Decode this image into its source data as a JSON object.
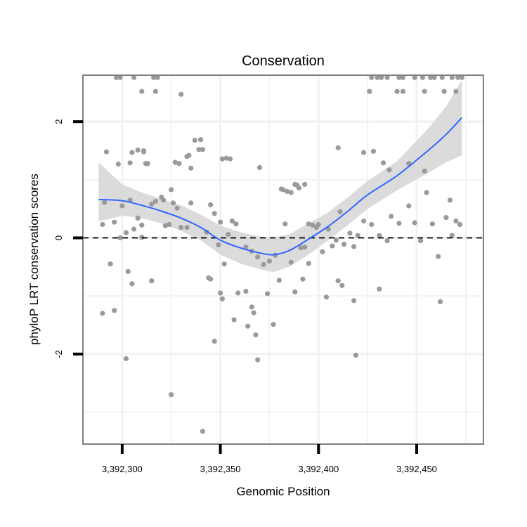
{
  "chart_data": {
    "type": "scatter",
    "title": "Conservation",
    "xlabel": "Genomic Position",
    "ylabel": "phyloP LRT conservation scores",
    "xlim": [
      3392280,
      3392484
    ],
    "ylim": [
      -3.55,
      2.8
    ],
    "x_ticks": [
      3392300,
      3392350,
      3392400,
      3392450
    ],
    "x_tick_labels": [
      "3,392,300",
      "3,392,350",
      "3,392,400",
      "3,392,450"
    ],
    "y_ticks": [
      -2,
      0,
      2
    ],
    "y_tick_labels": [
      "-2",
      "0",
      "2"
    ],
    "reference_line": {
      "y": 0,
      "style": "dashed"
    },
    "grid": true,
    "colors": {
      "points": "#9a9a9a",
      "smooth": "#3366ff",
      "ribbon": "#d9d9d9",
      "frame": "#7f7f7f",
      "grid": "#f2f2f2"
    },
    "points": [
      [
        3392297,
        2.76
      ],
      [
        3392299,
        2.76
      ],
      [
        3392306,
        2.76
      ],
      [
        3392316,
        2.76
      ],
      [
        3392318,
        2.76
      ],
      [
        3392310,
        2.52
      ],
      [
        3392317,
        2.52
      ],
      [
        3392330,
        2.47
      ],
      [
        3392427,
        2.76
      ],
      [
        3392430,
        2.76
      ],
      [
        3392432,
        2.76
      ],
      [
        3392435,
        2.76
      ],
      [
        3392441,
        2.76
      ],
      [
        3392443,
        2.76
      ],
      [
        3392449,
        2.76
      ],
      [
        3392453,
        2.76
      ],
      [
        3392457,
        2.76
      ],
      [
        3392459,
        2.76
      ],
      [
        3392463,
        2.76
      ],
      [
        3392468,
        2.76
      ],
      [
        3392471,
        2.76
      ],
      [
        3392473,
        2.76
      ],
      [
        3392426,
        2.52
      ],
      [
        3392440,
        2.52
      ],
      [
        3392443,
        2.52
      ],
      [
        3392454,
        2.52
      ],
      [
        3392464,
        2.52
      ],
      [
        3392470,
        2.52
      ],
      [
        3392292,
        1.48
      ],
      [
        3392305,
        1.47
      ],
      [
        3392308,
        1.51
      ],
      [
        3392311,
        1.48
      ],
      [
        3392311,
        1.5
      ],
      [
        3392298,
        1.27
      ],
      [
        3392304,
        1.29
      ],
      [
        3392312,
        1.28
      ],
      [
        3392313,
        1.28
      ],
      [
        3392327,
        1.3
      ],
      [
        3392329,
        1.28
      ],
      [
        3392333,
        1.4
      ],
      [
        3392334,
        1.42
      ],
      [
        3392335,
        1.2
      ],
      [
        3392337,
        1.68
      ],
      [
        3392339,
        1.52
      ],
      [
        3392340,
        1.69
      ],
      [
        3392341,
        1.52
      ],
      [
        3392351,
        1.36
      ],
      [
        3392353,
        1.37
      ],
      [
        3392355,
        1.36
      ],
      [
        3392370,
        1.21
      ],
      [
        3392381,
        0.84
      ],
      [
        3392382,
        0.83
      ],
      [
        3392384,
        0.8
      ],
      [
        3392386,
        0.78
      ],
      [
        3392388,
        0.92
      ],
      [
        3392389,
        0.91
      ],
      [
        3392390,
        0.86
      ],
      [
        3392393,
        0.92
      ],
      [
        3392410,
        1.55
      ],
      [
        3392423,
        1.47
      ],
      [
        3392428,
        1.49
      ],
      [
        3392433,
        1.29
      ],
      [
        3392436,
        1.17
      ],
      [
        3392446,
        1.28
      ],
      [
        3392454,
        1.15
      ],
      [
        3392290,
        0.23
      ],
      [
        3392291,
        0.61
      ],
      [
        3392296,
        0.27
      ],
      [
        3392300,
        0.55
      ],
      [
        3392302,
        0.09
      ],
      [
        3392304,
        0.65
      ],
      [
        3392306,
        0.15
      ],
      [
        3392308,
        0.34
      ],
      [
        3392310,
        0.22
      ],
      [
        3392315,
        0.58
      ],
      [
        3392317,
        0.63
      ],
      [
        3392320,
        0.7
      ],
      [
        3392321,
        0.65
      ],
      [
        3392322,
        0.21
      ],
      [
        3392324,
        0.23
      ],
      [
        3392325,
        0.83
      ],
      [
        3392326,
        0.6
      ],
      [
        3392328,
        0.51
      ],
      [
        3392330,
        0.18
      ],
      [
        3392333,
        0.18
      ],
      [
        3392335,
        0.6
      ],
      [
        3392343,
        0.1
      ],
      [
        3392344,
        -0.69
      ],
      [
        3392345,
        0.57
      ],
      [
        3392347,
        0.42
      ],
      [
        3392349,
        -0.12
      ],
      [
        3392350,
        0.27
      ],
      [
        3392352,
        -0.45
      ],
      [
        3392354,
        0.06
      ],
      [
        3392356,
        0.29
      ],
      [
        3392358,
        0.24
      ],
      [
        3392363,
        -0.16
      ],
      [
        3392366,
        -0.23
      ],
      [
        3392369,
        -0.33
      ],
      [
        3392372,
        -0.46
      ],
      [
        3392375,
        -0.4
      ],
      [
        3392378,
        -0.3
      ],
      [
        3392383,
        0.24
      ],
      [
        3392386,
        -0.42
      ],
      [
        3392391,
        -0.17
      ],
      [
        3392393,
        -0.16
      ],
      [
        3392395,
        0.24
      ],
      [
        3392397,
        0.22
      ],
      [
        3392399,
        0.18
      ],
      [
        3392400,
        0.23
      ],
      [
        3392402,
        -0.24
      ],
      [
        3392405,
        0.15
      ],
      [
        3392407,
        -0.14
      ],
      [
        3392409,
        -0.04
      ],
      [
        3392411,
        0.45
      ],
      [
        3392413,
        -0.11
      ],
      [
        3392416,
        0.08
      ],
      [
        3392418,
        -0.15
      ],
      [
        3392420,
        0.04
      ],
      [
        3392423,
        0.29
      ],
      [
        3392427,
        0.23
      ],
      [
        3392431,
        0.04
      ],
      [
        3392435,
        -0.05
      ],
      [
        3392437,
        0.37
      ],
      [
        3392441,
        0.25
      ],
      [
        3392446,
        0.55
      ],
      [
        3392449,
        0.26
      ],
      [
        3392452,
        -0.05
      ],
      [
        3392455,
        0.78
      ],
      [
        3392458,
        0.24
      ],
      [
        3392461,
        -0.32
      ],
      [
        3392465,
        0.35
      ],
      [
        3392467,
        0.65
      ],
      [
        3392468,
        0.04
      ],
      [
        3392470,
        0.29
      ],
      [
        3392472,
        0.23
      ],
      [
        3392294,
        -0.45
      ],
      [
        3392296,
        -1.25
      ],
      [
        3392299,
        0.0
      ],
      [
        3392302,
        -2.08
      ],
      [
        3392303,
        -0.58
      ],
      [
        3392305,
        -0.79
      ],
      [
        3392310,
        0.01
      ],
      [
        3392315,
        -0.74
      ],
      [
        3392345,
        -0.71
      ],
      [
        3392347,
        -1.78
      ],
      [
        3392350,
        -0.95
      ],
      [
        3392351,
        -1.05
      ],
      [
        3392357,
        -1.41
      ],
      [
        3392359,
        -0.95
      ],
      [
        3392363,
        -0.92
      ],
      [
        3392364,
        -1.52
      ],
      [
        3392366,
        -1.19
      ],
      [
        3392367,
        -1.29
      ],
      [
        3392368,
        -1.67
      ],
      [
        3392369,
        -2.1
      ],
      [
        3392374,
        -0.96
      ],
      [
        3392377,
        -1.49
      ],
      [
        3392380,
        -0.73
      ],
      [
        3392388,
        -0.93
      ],
      [
        3392392,
        -0.71
      ],
      [
        3392395,
        -0.44
      ],
      [
        3392404,
        -1.02
      ],
      [
        3392410,
        -0.74
      ],
      [
        3392412,
        -0.82
      ],
      [
        3392418,
        -1.08
      ],
      [
        3392419,
        -2.02
      ],
      [
        3392431,
        -0.88
      ],
      [
        3392462,
        -1.1
      ],
      [
        3392290,
        -1.3
      ],
      [
        3392325,
        -2.7
      ],
      [
        3392341,
        -3.33
      ]
    ],
    "smooth": {
      "x": [
        3392288,
        3392300,
        3392310,
        3392320,
        3392330,
        3392340,
        3392350,
        3392360,
        3392370,
        3392377,
        3392385,
        3392395,
        3392405,
        3392415,
        3392425,
        3392440,
        3392455,
        3392465,
        3392473
      ],
      "y": [
        0.66,
        0.64,
        0.56,
        0.46,
        0.34,
        0.18,
        -0.04,
        -0.17,
        -0.26,
        -0.29,
        -0.22,
        -0.02,
        0.2,
        0.46,
        0.74,
        1.07,
        1.48,
        1.78,
        2.07
      ],
      "lower": [
        0.28,
        0.38,
        0.34,
        0.25,
        0.12,
        -0.04,
        -0.29,
        -0.44,
        -0.54,
        -0.59,
        -0.5,
        -0.29,
        -0.04,
        0.22,
        0.5,
        0.82,
        1.1,
        1.3,
        1.42
      ],
      "upper": [
        1.3,
        0.92,
        0.78,
        0.67,
        0.56,
        0.4,
        0.21,
        0.1,
        0.02,
        0.01,
        0.06,
        0.25,
        0.44,
        0.7,
        0.98,
        1.32,
        1.85,
        2.26,
        2.72
      ]
    }
  }
}
